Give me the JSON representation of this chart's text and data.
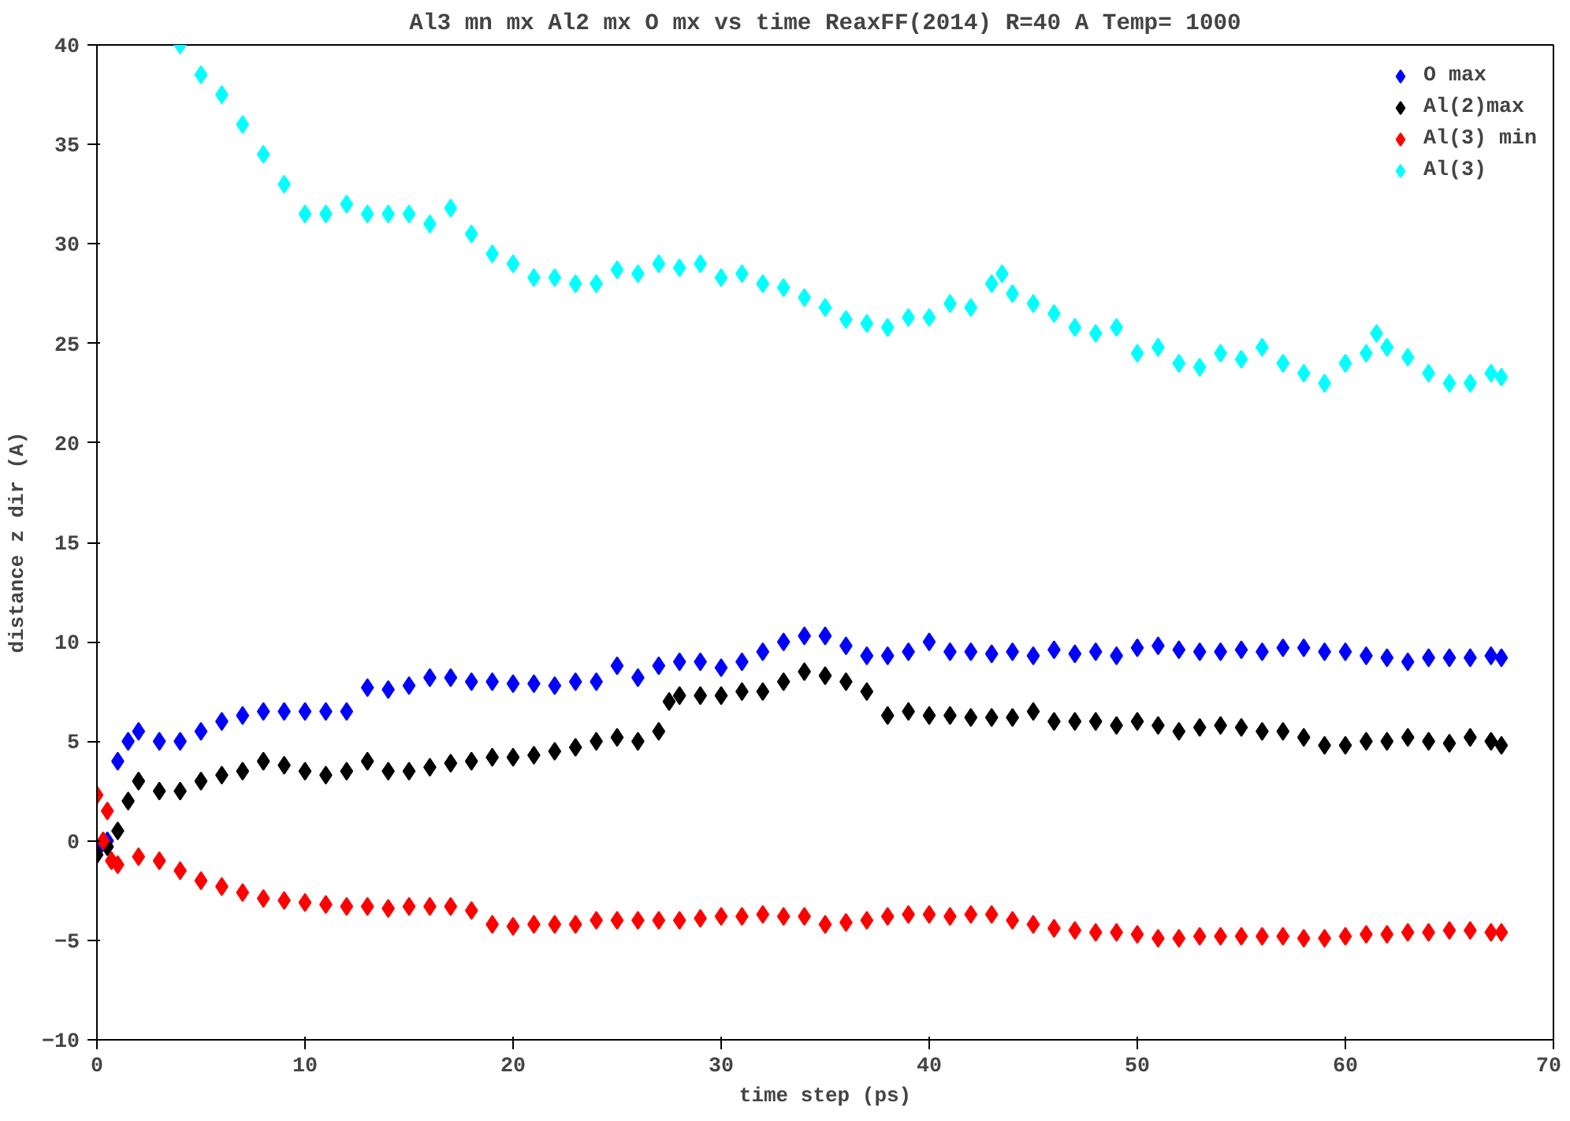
{
  "chart_data": {
    "type": "scatter",
    "title": "Al3 mn mx Al2 mx O mx vs time ReaxFF(2014) R=40 A Temp= 1000",
    "xlabel": "time step (ps)",
    "ylabel": "distance z dir (A)",
    "xlim": [
      0,
      70
    ],
    "ylim": [
      -10,
      40
    ],
    "xticks": [
      0,
      10,
      20,
      30,
      40,
      50,
      60,
      70
    ],
    "yticks": [
      -10,
      -5,
      0,
      5,
      10,
      15,
      20,
      25,
      30,
      35,
      40
    ],
    "grid": false,
    "legend": "top right",
    "marker": "diamond",
    "series": [
      {
        "name": "O max",
        "color": "#0000ff",
        "x": [
          0,
          0.5,
          1,
          1.5,
          2,
          3,
          4,
          5,
          6,
          7,
          8,
          9,
          10,
          11,
          12,
          13,
          14,
          15,
          16,
          17,
          18,
          19,
          20,
          21,
          22,
          23,
          24,
          25,
          26,
          27,
          28,
          29,
          30,
          31,
          32,
          33,
          34,
          35,
          36,
          37,
          38,
          39,
          40,
          41,
          42,
          43,
          44,
          45,
          46,
          47,
          48,
          49,
          50,
          51,
          52,
          53,
          54,
          55,
          56,
          57,
          58,
          59,
          60,
          61,
          62,
          63,
          64,
          65,
          66,
          67,
          67.5
        ],
        "values": [
          -0.5,
          0,
          4,
          5,
          5.5,
          5,
          5,
          5.5,
          6,
          6.3,
          6.5,
          6.5,
          6.5,
          6.5,
          6.5,
          7.7,
          7.6,
          7.8,
          8.2,
          8.2,
          8,
          8,
          7.9,
          7.9,
          7.8,
          8,
          8,
          8.8,
          8.2,
          8.8,
          9,
          9,
          8.7,
          9,
          9.5,
          10,
          10.3,
          10.3,
          9.8,
          9.3,
          9.3,
          9.5,
          10,
          9.5,
          9.5,
          9.4,
          9.5,
          9.3,
          9.6,
          9.4,
          9.5,
          9.3,
          9.7,
          9.8,
          9.6,
          9.5,
          9.5,
          9.6,
          9.5,
          9.7,
          9.7,
          9.5,
          9.5,
          9.3,
          9.2,
          9,
          9.2,
          9.2,
          9.2,
          9.3,
          9.2
        ]
      },
      {
        "name": "Al(2)max",
        "color": "#000000",
        "x": [
          0,
          0.5,
          1,
          1.5,
          2,
          3,
          4,
          5,
          6,
          7,
          8,
          9,
          10,
          11,
          12,
          13,
          14,
          15,
          16,
          17,
          18,
          19,
          20,
          21,
          22,
          23,
          24,
          25,
          26,
          27,
          27.5,
          28,
          29,
          30,
          31,
          32,
          33,
          34,
          35,
          36,
          37,
          38,
          39,
          40,
          41,
          42,
          43,
          44,
          45,
          46,
          47,
          48,
          49,
          50,
          51,
          52,
          53,
          54,
          55,
          56,
          57,
          58,
          59,
          60,
          61,
          62,
          63,
          64,
          65,
          66,
          67,
          67.5
        ],
        "values": [
          -0.7,
          -0.3,
          0.5,
          2,
          3,
          2.5,
          2.5,
          3,
          3.3,
          3.5,
          4,
          3.8,
          3.5,
          3.3,
          3.5,
          4,
          3.5,
          3.5,
          3.7,
          3.9,
          4,
          4.2,
          4.2,
          4.3,
          4.5,
          4.7,
          5,
          5.2,
          5,
          5.5,
          7,
          7.3,
          7.3,
          7.3,
          7.5,
          7.5,
          8,
          8.5,
          8.3,
          8,
          7.5,
          6.3,
          6.5,
          6.3,
          6.3,
          6.2,
          6.2,
          6.2,
          6.5,
          6,
          6,
          6,
          5.8,
          6,
          5.8,
          5.5,
          5.7,
          5.8,
          5.7,
          5.5,
          5.5,
          5.2,
          4.8,
          4.8,
          5,
          5,
          5.2,
          5,
          4.9,
          5.2,
          5,
          4.8
        ]
      },
      {
        "name": "Al(3) min",
        "color": "#ff0000",
        "x": [
          0,
          0.3,
          0.5,
          0.7,
          1,
          2,
          3,
          4,
          5,
          6,
          7,
          8,
          9,
          10,
          11,
          12,
          13,
          14,
          15,
          16,
          17,
          18,
          19,
          20,
          21,
          22,
          23,
          24,
          25,
          26,
          27,
          28,
          29,
          30,
          31,
          32,
          33,
          34,
          35,
          36,
          37,
          38,
          39,
          40,
          41,
          42,
          43,
          44,
          45,
          46,
          47,
          48,
          49,
          50,
          51,
          52,
          53,
          54,
          55,
          56,
          57,
          58,
          59,
          60,
          61,
          62,
          63,
          64,
          65,
          66,
          67,
          67.5
        ],
        "values": [
          2.3,
          0,
          1.5,
          -1,
          -1.2,
          -0.8,
          -1,
          -1.5,
          -2,
          -2.3,
          -2.6,
          -2.9,
          -3,
          -3.1,
          -3.2,
          -3.3,
          -3.3,
          -3.4,
          -3.3,
          -3.3,
          -3.3,
          -3.5,
          -4.2,
          -4.3,
          -4.2,
          -4.2,
          -4.2,
          -4,
          -4,
          -4,
          -4,
          -4,
          -3.9,
          -3.8,
          -3.8,
          -3.7,
          -3.8,
          -3.8,
          -4.2,
          -4.1,
          -4,
          -3.8,
          -3.7,
          -3.7,
          -3.8,
          -3.7,
          -3.7,
          -4,
          -4.2,
          -4.4,
          -4.5,
          -4.6,
          -4.6,
          -4.7,
          -4.9,
          -4.9,
          -4.8,
          -4.8,
          -4.8,
          -4.8,
          -4.8,
          -4.9,
          -4.9,
          -4.8,
          -4.7,
          -4.7,
          -4.6,
          -4.6,
          -4.5,
          -4.5,
          -4.6,
          -4.6
        ]
      },
      {
        "name": "Al(3)",
        "color": "#00ffff",
        "x": [
          4,
          5,
          6,
          7,
          8,
          9,
          10,
          11,
          12,
          13,
          14,
          15,
          16,
          17,
          18,
          19,
          20,
          21,
          22,
          23,
          24,
          25,
          26,
          27,
          28,
          29,
          30,
          31,
          32,
          33,
          34,
          35,
          36,
          37,
          38,
          39,
          40,
          41,
          42,
          43,
          43.5,
          44,
          45,
          46,
          47,
          48,
          49,
          50,
          51,
          52,
          53,
          54,
          55,
          56,
          57,
          58,
          59,
          60,
          61,
          61.5,
          62,
          63,
          64,
          65,
          66,
          67,
          67.5
        ],
        "values": [
          40,
          38.5,
          37.5,
          36,
          34.5,
          33,
          31.5,
          31.5,
          32,
          31.5,
          31.5,
          31.5,
          31,
          31.8,
          30.5,
          29.5,
          29,
          28.3,
          28.3,
          28,
          28,
          28.7,
          28.5,
          29,
          28.8,
          29,
          28.3,
          28.5,
          28,
          27.8,
          27.3,
          26.8,
          26.2,
          26,
          25.8,
          26.3,
          26.3,
          27,
          26.8,
          28,
          28.5,
          27.5,
          27,
          26.5,
          25.8,
          25.5,
          25.8,
          24.5,
          24.8,
          24,
          23.8,
          24.5,
          24.2,
          24.8,
          24,
          23.5,
          23,
          24,
          24.5,
          25.5,
          24.8,
          24.3,
          23.5,
          23,
          23,
          23.5,
          23.3
        ]
      }
    ]
  }
}
